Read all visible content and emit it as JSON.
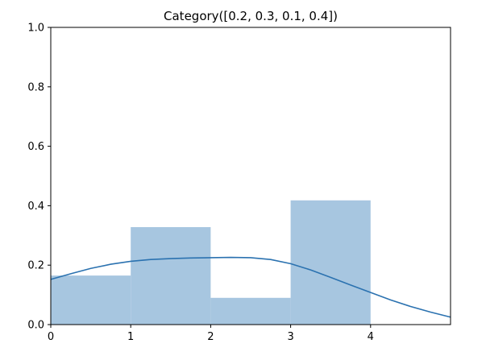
{
  "colors": {
    "bar_fill": "#a7c6e0",
    "kde_line": "#2b72b0",
    "axes": "#000000",
    "background": "#ffffff"
  },
  "chart_data": {
    "type": "bar",
    "title": "Category([0.2, 0.3, 0.1, 0.4])",
    "xlabel": "",
    "ylabel": "",
    "xlim": [
      0,
      5
    ],
    "ylim": [
      0,
      1.0
    ],
    "x_ticks": [
      "0",
      "1",
      "2",
      "3",
      "4"
    ],
    "x_tick_values": [
      0,
      1,
      2,
      3,
      4
    ],
    "y_ticks": [
      "0.0",
      "0.2",
      "0.4",
      "0.6",
      "0.8",
      "1.0"
    ],
    "y_tick_values": [
      0.0,
      0.2,
      0.4,
      0.6,
      0.8,
      1.0
    ],
    "grid": false,
    "legend": "none",
    "bins": [
      {
        "x0": 0,
        "x1": 1,
        "value": 0.165
      },
      {
        "x0": 1,
        "x1": 2,
        "value": 0.328
      },
      {
        "x0": 2,
        "x1": 3,
        "value": 0.09
      },
      {
        "x0": 3,
        "x1": 4,
        "value": 0.418
      }
    ],
    "kde_curve": {
      "type": "line",
      "x": [
        0,
        0.25,
        0.5,
        0.75,
        1.0,
        1.25,
        1.5,
        1.75,
        2.0,
        2.25,
        2.5,
        2.75,
        3.0,
        3.25,
        3.5,
        3.75,
        4.0,
        4.25,
        4.5,
        4.75,
        5.0
      ],
      "y": [
        0.152,
        0.171,
        0.189,
        0.203,
        0.213,
        0.219,
        0.222,
        0.224,
        0.225,
        0.226,
        0.225,
        0.219,
        0.205,
        0.184,
        0.159,
        0.133,
        0.108,
        0.083,
        0.061,
        0.042,
        0.025
      ]
    }
  }
}
